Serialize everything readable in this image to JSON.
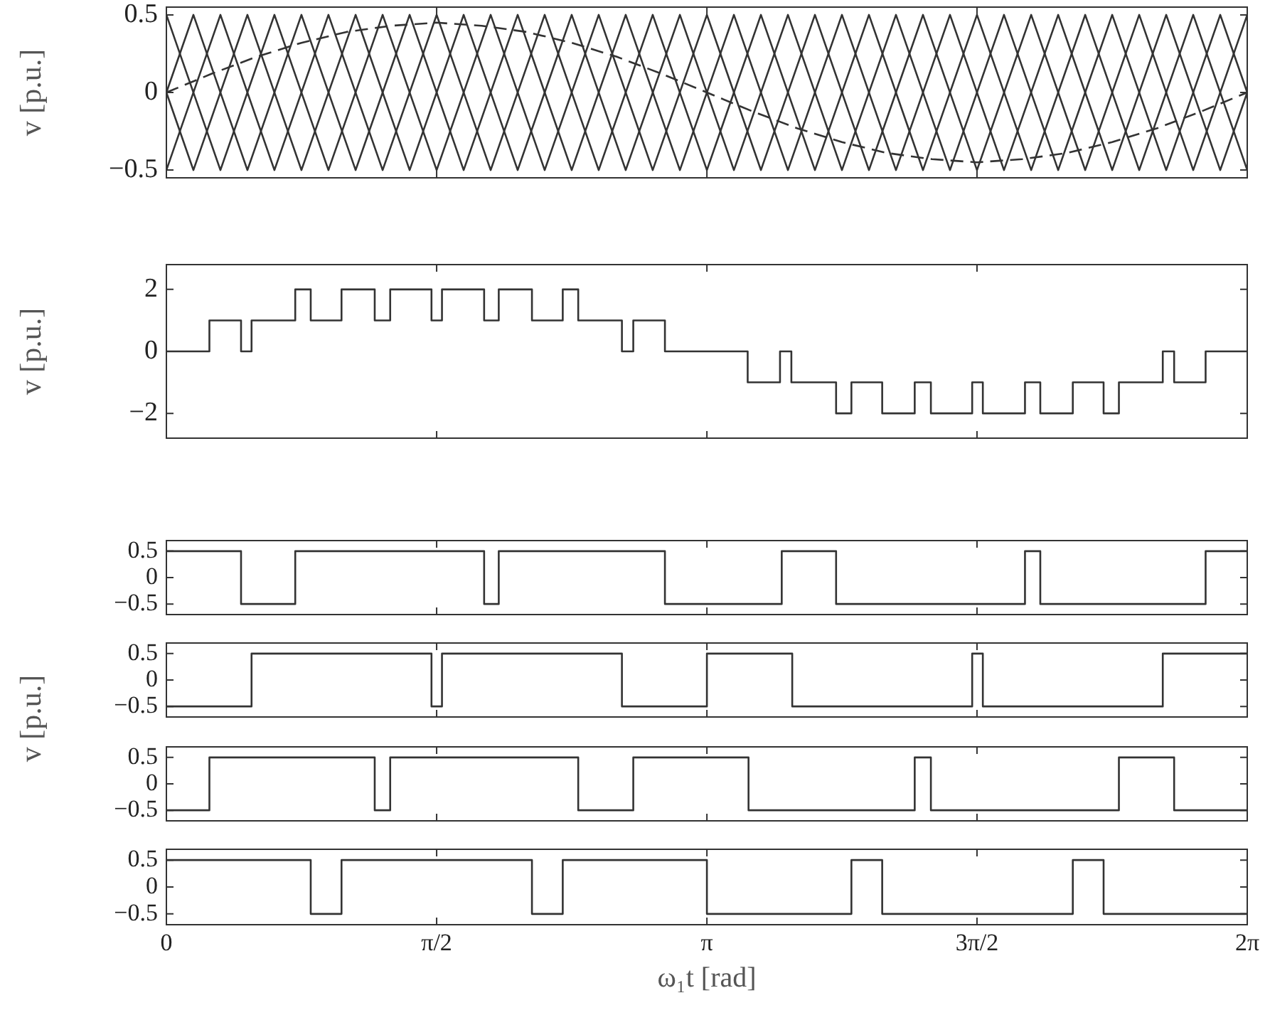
{
  "chart_data": [
    {
      "type": "line",
      "ylabel": "v [p.u.]",
      "xlim": [
        0,
        6.283
      ],
      "xticks": [
        {
          "value": 0,
          "label": null
        },
        {
          "value": 1.571,
          "label": null
        },
        {
          "value": 3.142,
          "label": null
        },
        {
          "value": 4.712,
          "label": null
        },
        {
          "value": 6.283,
          "label": null
        }
      ],
      "ylim": [
        -0.55,
        0.55
      ],
      "yticks": [
        -0.5,
        0,
        0.5
      ],
      "tick_labels": "y",
      "marker": "none",
      "series": [
        {
          "color": "#333333",
          "x": [
            0,
            0.314,
            0.628,
            0.942,
            1.257,
            1.571,
            1.885,
            2.199,
            2.513,
            2.827,
            3.142,
            3.456,
            3.77,
            4.084,
            4.398,
            4.712,
            5.027,
            5.341,
            5.655,
            5.969,
            6.283
          ],
          "values": [
            0.5,
            -0.5,
            0.5,
            -0.5,
            0.5,
            -0.5,
            0.5,
            -0.5,
            0.5,
            -0.5,
            0.5,
            -0.5,
            0.5,
            -0.5,
            0.5,
            -0.5,
            0.5,
            -0.5,
            0.5,
            -0.5,
            0.5
          ]
        },
        {
          "color": "#333333",
          "x": [
            0,
            0.157,
            0.471,
            0.785,
            1.1,
            1.414,
            1.728,
            2.042,
            2.356,
            2.67,
            2.985,
            3.299,
            3.613,
            3.927,
            4.241,
            4.555,
            4.869,
            5.184,
            5.498,
            5.812,
            6.126,
            6.283
          ],
          "values": [
            0,
            -0.5,
            0.5,
            -0.5,
            0.5,
            -0.5,
            0.5,
            -0.5,
            0.5,
            -0.5,
            0.5,
            -0.5,
            0.5,
            -0.5,
            0.5,
            -0.5,
            0.5,
            -0.5,
            0.5,
            -0.5,
            0.5,
            0
          ]
        },
        {
          "color": "#333333",
          "x": [
            0,
            0.314,
            0.628,
            0.942,
            1.257,
            1.571,
            1.885,
            2.199,
            2.513,
            2.827,
            3.142,
            3.456,
            3.77,
            4.084,
            4.398,
            4.712,
            5.027,
            5.341,
            5.655,
            5.969,
            6.283
          ],
          "values": [
            -0.5,
            0.5,
            -0.5,
            0.5,
            -0.5,
            0.5,
            -0.5,
            0.5,
            -0.5,
            0.5,
            -0.5,
            0.5,
            -0.5,
            0.5,
            -0.5,
            0.5,
            -0.5,
            0.5,
            -0.5,
            0.5,
            -0.5
          ]
        },
        {
          "color": "#333333",
          "x": [
            0,
            0.157,
            0.471,
            0.785,
            1.1,
            1.414,
            1.728,
            2.042,
            2.356,
            2.67,
            2.985,
            3.299,
            3.613,
            3.927,
            4.241,
            4.555,
            4.869,
            5.184,
            5.498,
            5.812,
            6.126,
            6.283
          ],
          "values": [
            0,
            0.5,
            -0.5,
            0.5,
            -0.5,
            0.5,
            -0.5,
            0.5,
            -0.5,
            0.5,
            -0.5,
            0.5,
            -0.5,
            0.5,
            -0.5,
            0.5,
            -0.5,
            0.5,
            -0.5,
            0.5,
            -0.5,
            0
          ]
        },
        {
          "color": "#333333",
          "line_style": "dashed",
          "x": [
            0,
            0.262,
            0.524,
            0.785,
            1.047,
            1.309,
            1.571,
            1.833,
            2.094,
            2.356,
            2.618,
            2.88,
            3.142,
            3.403,
            3.665,
            3.927,
            4.189,
            4.451,
            4.712,
            4.974,
            5.236,
            5.498,
            5.76,
            6.021,
            6.283
          ],
          "values": [
            0,
            0.12,
            0.23,
            0.32,
            0.39,
            0.43,
            0.45,
            0.43,
            0.39,
            0.32,
            0.23,
            0.12,
            0,
            -0.12,
            -0.23,
            -0.32,
            -0.39,
            -0.43,
            -0.45,
            -0.43,
            -0.39,
            -0.32,
            -0.23,
            -0.12,
            0
          ]
        }
      ]
    },
    {
      "type": "step",
      "ylabel": "v [p.u.]",
      "xlim": [
        0,
        6.283
      ],
      "xticks": [
        {
          "value": 0,
          "label": null
        },
        {
          "value": 1.571,
          "label": null
        },
        {
          "value": 3.142,
          "label": null
        },
        {
          "value": 4.712,
          "label": null
        },
        {
          "value": 6.283,
          "label": null
        }
      ],
      "ylim": [
        -2.8,
        2.8
      ],
      "yticks": [
        -2,
        0,
        2
      ],
      "tick_labels": "y",
      "marker": "none",
      "series": [
        {
          "color": "#333333",
          "x": [
            0,
            0.25,
            0.434,
            0.495,
            0.749,
            0.839,
            1.018,
            1.211,
            1.301,
            1.541,
            1.602,
            1.847,
            1.932,
            2.125,
            2.304,
            2.394,
            2.648,
            2.714,
            2.898,
            3.379,
            3.567,
            3.633,
            3.893,
            3.982,
            4.161,
            4.35,
            4.444,
            4.684,
            4.746,
            4.991,
            5.08,
            5.269,
            5.448,
            5.537,
            5.792,
            5.858,
            6.041,
            6.283
          ],
          "values": [
            0,
            1,
            0,
            1,
            2,
            1,
            2,
            1,
            2,
            1,
            2,
            1,
            2,
            1,
            2,
            1,
            0,
            1,
            0,
            -1,
            0,
            -1,
            -2,
            -1,
            -2,
            -1,
            -2,
            -1,
            -2,
            -1,
            -2,
            -1,
            -2,
            -1,
            0,
            -1,
            0,
            0
          ]
        }
      ]
    },
    {
      "type": "step",
      "xlim": [
        0,
        6.283
      ],
      "xticks": [
        {
          "value": 0,
          "label": null
        },
        {
          "value": 1.571,
          "label": null
        },
        {
          "value": 3.142,
          "label": null
        },
        {
          "value": 4.712,
          "label": null
        },
        {
          "value": 6.283,
          "label": null
        }
      ],
      "ylim": [
        -0.7,
        0.7
      ],
      "yticks": [
        -0.5,
        0,
        0.5
      ],
      "tick_labels": "y",
      "marker": "none",
      "series": [
        {
          "color": "#333333",
          "x": [
            0,
            0.434,
            0.749,
            1.847,
            1.932,
            2.898,
            3.577,
            3.893,
            4.991,
            5.08,
            6.041,
            6.283
          ],
          "values": [
            0.5,
            -0.5,
            0.5,
            -0.5,
            0.5,
            -0.5,
            0.5,
            -0.5,
            0.5,
            -0.5,
            0.5,
            0.5
          ]
        }
      ]
    },
    {
      "type": "step",
      "ylabel": "v [p.u.]",
      "xlim": [
        0,
        6.283
      ],
      "xticks": [
        {
          "value": 0,
          "label": null
        },
        {
          "value": 1.571,
          "label": null
        },
        {
          "value": 3.142,
          "label": null
        },
        {
          "value": 4.712,
          "label": null
        },
        {
          "value": 6.283,
          "label": null
        }
      ],
      "ylim": [
        -0.7,
        0.7
      ],
      "yticks": [
        -0.5,
        0,
        0.5
      ],
      "tick_labels": "y",
      "marker": "none",
      "series": [
        {
          "color": "#333333",
          "x": [
            0,
            0.495,
            1.541,
            1.602,
            2.648,
            3.142,
            3.638,
            4.684,
            4.746,
            5.792,
            6.283
          ],
          "values": [
            -0.5,
            0.5,
            -0.5,
            0.5,
            -0.5,
            0.5,
            -0.5,
            0.5,
            -0.5,
            0.5,
            0.5
          ]
        }
      ]
    },
    {
      "type": "step",
      "xlim": [
        0,
        6.283
      ],
      "xticks": [
        {
          "value": 0,
          "label": null
        },
        {
          "value": 1.571,
          "label": null
        },
        {
          "value": 3.142,
          "label": null
        },
        {
          "value": 4.712,
          "label": null
        },
        {
          "value": 6.283,
          "label": null
        }
      ],
      "ylim": [
        -0.7,
        0.7
      ],
      "yticks": [
        -0.5,
        0,
        0.5
      ],
      "tick_labels": "y",
      "marker": "none",
      "series": [
        {
          "color": "#333333",
          "x": [
            0,
            0.25,
            1.211,
            1.301,
            2.394,
            2.714,
            3.384,
            4.35,
            4.444,
            5.537,
            5.858,
            6.283
          ],
          "values": [
            -0.5,
            0.5,
            -0.5,
            0.5,
            -0.5,
            0.5,
            -0.5,
            0.5,
            -0.5,
            0.5,
            -0.5,
            -0.5
          ]
        }
      ]
    },
    {
      "type": "step",
      "xlabel": "ω₁t [rad]",
      "xlim": [
        0,
        6.283
      ],
      "xticks": [
        0,
        {
          "value": 1.571,
          "label": "π/2"
        },
        {
          "value": 3.142,
          "label": "π"
        },
        {
          "value": 4.712,
          "label": "3π/2"
        },
        {
          "value": 6.283,
          "label": "2π"
        }
      ],
      "ylim": [
        -0.7,
        0.7
      ],
      "yticks": [
        -0.5,
        0,
        0.5
      ],
      "marker": "none",
      "series": [
        {
          "color": "#333333",
          "x": [
            0,
            0.839,
            1.018,
            2.125,
            2.304,
            3.142,
            3.982,
            4.161,
            5.269,
            5.448,
            6.283
          ],
          "values": [
            0.5,
            -0.5,
            0.5,
            -0.5,
            0.5,
            -0.5,
            0.5,
            -0.5,
            0.5,
            -0.5,
            -0.5
          ]
        }
      ]
    }
  ]
}
